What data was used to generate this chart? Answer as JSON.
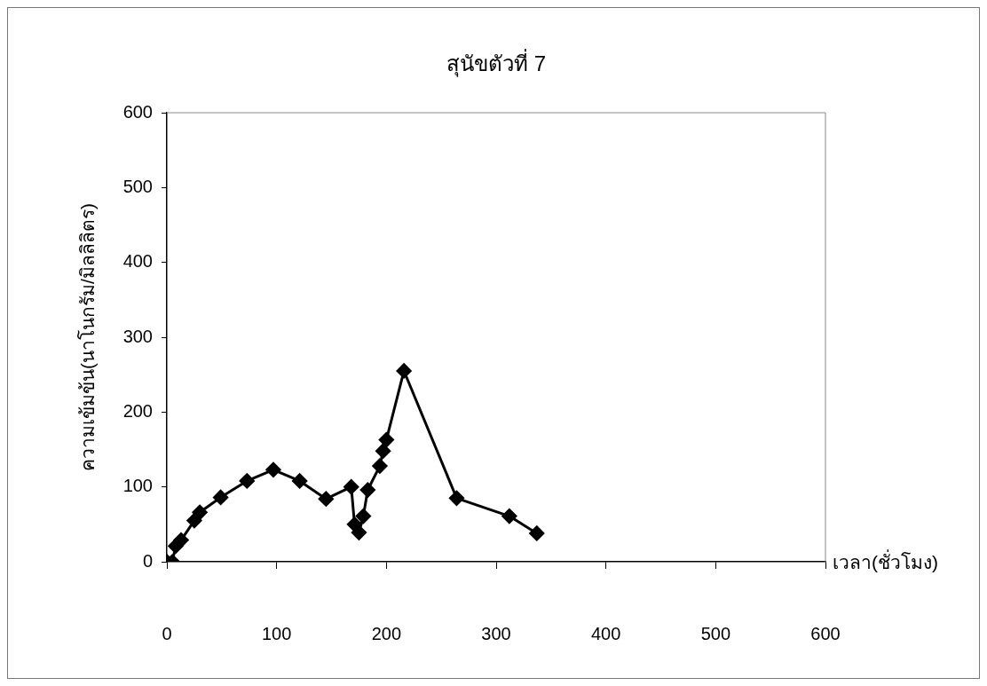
{
  "chart_data": {
    "type": "line",
    "title": "สุนัขตัวที่ 7",
    "xlabel": "เวลา(ชั่วโมง)",
    "ylabel": "ความเข้มข้น(นาโนกรัม/มิลลิลิตร)",
    "x": [
      0,
      5,
      8,
      13,
      25,
      30,
      49,
      73,
      97,
      121,
      145,
      168,
      171,
      175,
      179,
      183,
      194,
      197,
      200,
      216,
      264,
      312,
      337
    ],
    "series": [
      {
        "color": "#000000",
        "values": [
          0,
          0,
          21,
          29,
          55,
          66,
          86,
          108,
          123,
          108,
          84,
          100,
          50,
          39,
          61,
          96,
          128,
          148,
          163,
          255,
          85,
          61,
          38
        ]
      }
    ],
    "xlim": [
      0,
      600
    ],
    "xticks": [
      0,
      100,
      200,
      300,
      400,
      500,
      600
    ],
    "ylim": [
      0,
      600
    ],
    "yticks": [
      0,
      100,
      200,
      300,
      400,
      500,
      600
    ],
    "grid": false,
    "legend": false,
    "marker": "diamond",
    "line_style": "solid"
  }
}
